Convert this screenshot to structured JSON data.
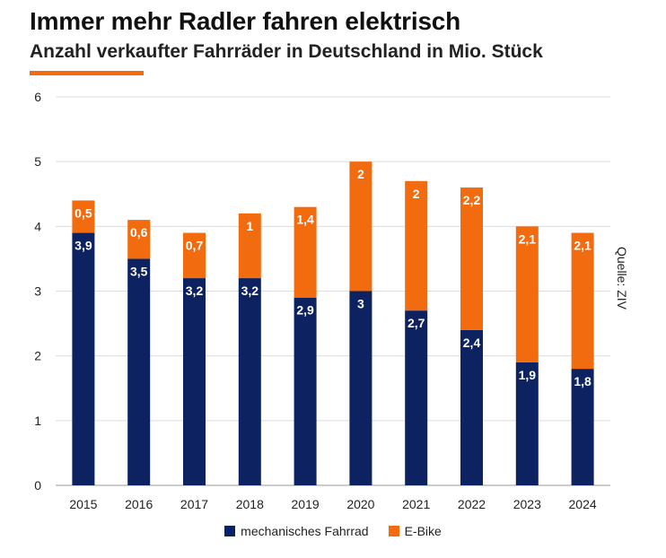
{
  "header": {
    "title": "Immer mehr Radler fahren elektrisch",
    "subtitle": "Anzahl verkaufter Fahrräder in Deutschland in Mio. Stück"
  },
  "source": "Quelle: ZIV",
  "colors": {
    "mechanical": "#0d2260",
    "ebike": "#f26b0f",
    "accent": "#f26b0f"
  },
  "chart_data": {
    "type": "bar",
    "stacked": true,
    "title": "Immer mehr Radler fahren elektrisch",
    "subtitle": "Anzahl verkaufter Fahrräder in Deutschland in Mio. Stück",
    "categories": [
      "2015",
      "2016",
      "2017",
      "2018",
      "2019",
      "2020",
      "2021",
      "2022",
      "2023",
      "2024"
    ],
    "series": [
      {
        "name": "mechanisches Fahrrad",
        "values": [
          3.9,
          3.5,
          3.2,
          3.2,
          2.9,
          3,
          2.7,
          2.4,
          1.9,
          1.8
        ],
        "labels": [
          "3,9",
          "3,5",
          "3,2",
          "3,2",
          "2,9",
          "3",
          "2,7",
          "2,4",
          "1,9",
          "1,8"
        ]
      },
      {
        "name": "E-Bike",
        "values": [
          0.5,
          0.6,
          0.7,
          1,
          1.4,
          2,
          2,
          2.2,
          2.1,
          2.1
        ],
        "labels": [
          "0,5",
          "0,6",
          "0,7",
          "1",
          "1,4",
          "2",
          "2",
          "2,2",
          "2,1",
          "2,1"
        ]
      }
    ],
    "ylim": [
      0,
      6
    ],
    "yticks": [
      "0",
      "1",
      "2",
      "3",
      "4",
      "5",
      "6"
    ],
    "xlabel": "",
    "ylabel": "",
    "grid": true,
    "legend_position": "bottom-center"
  }
}
